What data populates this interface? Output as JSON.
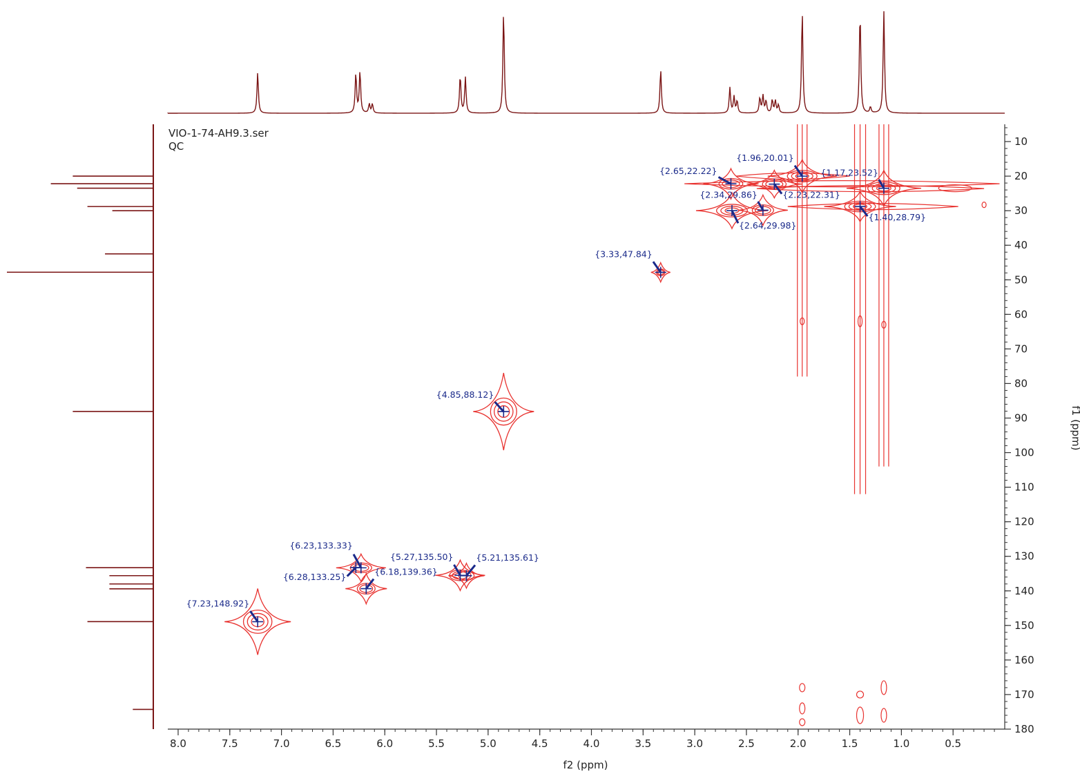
{
  "chart_data": {
    "type": "heatmap",
    "dataset_name": "VIO-1-74-AH9.3.ser",
    "experiment": "QC",
    "xlabel": "f2 (ppm)",
    "ylabel": "f1 (ppm)",
    "xlim": [
      8.1,
      0.0
    ],
    "ylim": [
      5,
      180
    ],
    "x_ticks": [
      "8.0",
      "7.5",
      "7.0",
      "6.5",
      "6.0",
      "5.5",
      "5.0",
      "4.5",
      "4.0",
      "3.5",
      "3.0",
      "2.5",
      "2.0",
      "1.5",
      "1.0",
      "0.5"
    ],
    "y_ticks": [
      "10",
      "20",
      "30",
      "40",
      "50",
      "60",
      "70",
      "80",
      "90",
      "100",
      "110",
      "120",
      "130",
      "140",
      "150",
      "160",
      "170",
      "180"
    ],
    "colors": {
      "contour": "#e8322f",
      "label": "#1a2a8a",
      "spectrum": "#7a1414",
      "axis": "#333333"
    },
    "peaks": [
      {
        "x": 7.23,
        "y": 148.92,
        "label": "{7.23,148.92}"
      },
      {
        "x": 6.23,
        "y": 133.33,
        "label": "{6.23,133.33}"
      },
      {
        "x": 6.28,
        "y": 133.25,
        "label": "{6.28,133.25}"
      },
      {
        "x": 6.18,
        "y": 139.36,
        "label": "{6.18,139.36}"
      },
      {
        "x": 5.27,
        "y": 135.5,
        "label": "{5.27,135.50}"
      },
      {
        "x": 5.21,
        "y": 135.61,
        "label": "{5.21,135.61}"
      },
      {
        "x": 4.85,
        "y": 88.12,
        "label": "{4.85,88.12}"
      },
      {
        "x": 3.33,
        "y": 47.84,
        "label": "{3.33,47.84}"
      },
      {
        "x": 2.65,
        "y": 22.22,
        "label": "{2.65,22.22}"
      },
      {
        "x": 2.34,
        "y": 29.86,
        "label": "{2.34,29.86}"
      },
      {
        "x": 2.64,
        "y": 29.98,
        "label": "{2.64,29.98}"
      },
      {
        "x": 1.96,
        "y": 20.01,
        "label": "{1.96,20.01}"
      },
      {
        "x": 2.23,
        "y": 22.31,
        "label": "{2.23,22.31}"
      },
      {
        "x": 1.17,
        "y": 23.52,
        "label": "{1.17,23.52}"
      },
      {
        "x": 1.4,
        "y": 28.79,
        "label": "{1.40,28.79}"
      }
    ],
    "proton_spectrum": [
      {
        "shift": 7.23,
        "height": 0.4
      },
      {
        "shift": 6.28,
        "height": 0.39
      },
      {
        "shift": 6.24,
        "height": 0.41
      },
      {
        "shift": 6.15,
        "height": 0.09
      },
      {
        "shift": 6.12,
        "height": 0.09
      },
      {
        "shift": 5.27,
        "height": 0.37
      },
      {
        "shift": 5.22,
        "height": 0.35
      },
      {
        "shift": 4.85,
        "height": 1.0
      },
      {
        "shift": 3.33,
        "height": 0.43
      },
      {
        "shift": 2.66,
        "height": 0.25
      },
      {
        "shift": 2.62,
        "height": 0.16
      },
      {
        "shift": 2.59,
        "height": 0.12
      },
      {
        "shift": 2.37,
        "height": 0.15
      },
      {
        "shift": 2.34,
        "height": 0.17
      },
      {
        "shift": 2.31,
        "height": 0.12
      },
      {
        "shift": 2.25,
        "height": 0.13
      },
      {
        "shift": 2.22,
        "height": 0.12
      },
      {
        "shift": 2.19,
        "height": 0.08
      },
      {
        "shift": 1.96,
        "height": 1.0
      },
      {
        "shift": 1.4,
        "height": 1.0
      },
      {
        "shift": 1.3,
        "height": 0.06
      },
      {
        "shift": 1.17,
        "height": 1.0
      }
    ],
    "carbon_spectrum": [
      {
        "shift": 20.0,
        "height": 0.55
      },
      {
        "shift": 22.2,
        "height": 0.7
      },
      {
        "shift": 23.5,
        "height": 0.52
      },
      {
        "shift": 28.8,
        "height": 0.45
      },
      {
        "shift": 30.0,
        "height": 0.28
      },
      {
        "shift": 42.5,
        "height": 0.33
      },
      {
        "shift": 47.8,
        "height": 1.0
      },
      {
        "shift": 88.1,
        "height": 0.55
      },
      {
        "shift": 133.3,
        "height": 0.46
      },
      {
        "shift": 135.6,
        "height": 0.3
      },
      {
        "shift": 138.0,
        "height": 0.3
      },
      {
        "shift": 139.4,
        "height": 0.3
      },
      {
        "shift": 148.9,
        "height": 0.45
      },
      {
        "shift": 174.3,
        "height": 0.14
      }
    ]
  }
}
